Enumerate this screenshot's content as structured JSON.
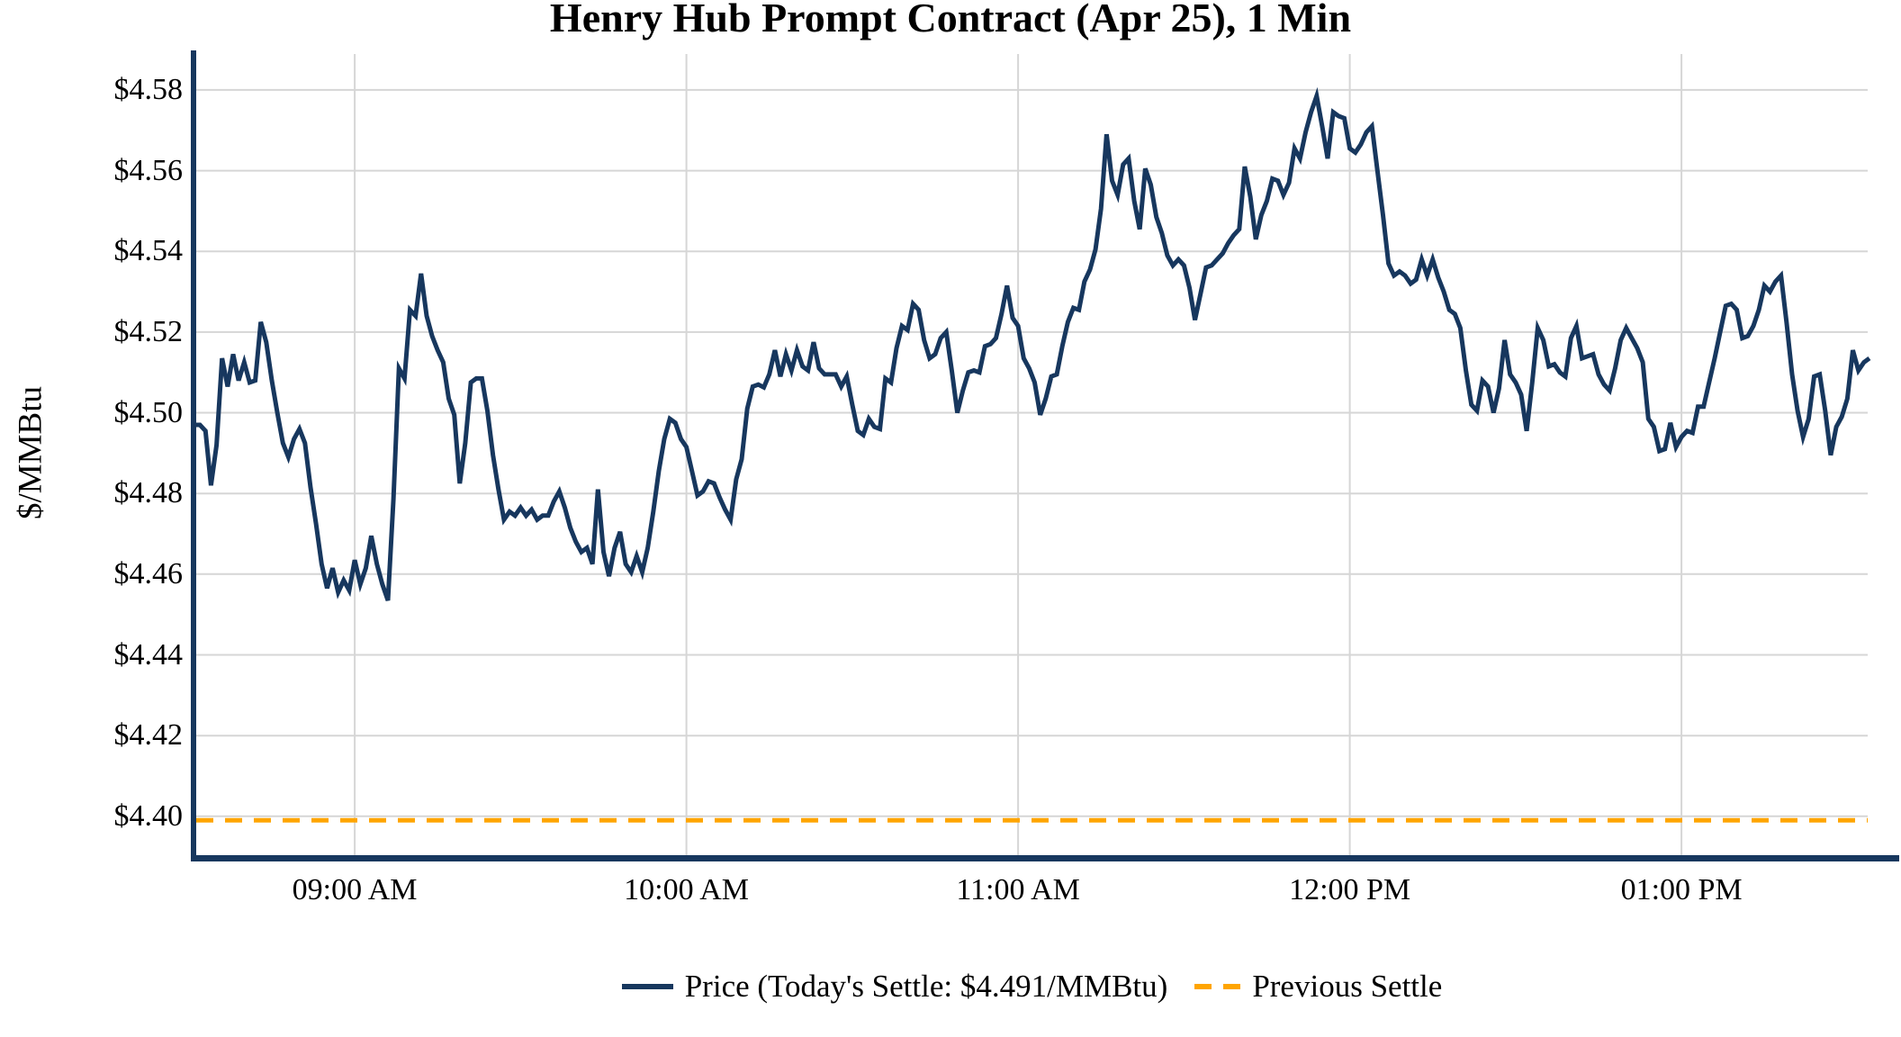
{
  "chart_data": {
    "type": "line",
    "title": "Henry Hub Prompt Contract (Apr 25), 1 Min",
    "ylabel": "$/MMBtu",
    "grid": true,
    "legend_position": "bottom",
    "ylim": [
      4.3897,
      4.5889
    ],
    "y_ticks": [
      {
        "label": "$4.40",
        "value": 4.4
      },
      {
        "label": "$4.42",
        "value": 4.42
      },
      {
        "label": "$4.44",
        "value": 4.44
      },
      {
        "label": "$4.46",
        "value": 4.46
      },
      {
        "label": "$4.48",
        "value": 4.48
      },
      {
        "label": "$4.50",
        "value": 4.5
      },
      {
        "label": "$4.52",
        "value": 4.52
      },
      {
        "label": "$4.54",
        "value": 4.54
      },
      {
        "label": "$4.56",
        "value": 4.56
      },
      {
        "label": "$4.58",
        "value": 4.58
      }
    ],
    "x_ticks": [
      {
        "label": "09:00 AM",
        "index": 29
      },
      {
        "label": "10:00 AM",
        "index": 89
      },
      {
        "label": "11:00 AM",
        "index": 149
      },
      {
        "label": "12:00 PM",
        "index": 209
      },
      {
        "label": "01:00 PM",
        "index": 269
      }
    ],
    "colors": {
      "price_line": "#17375E",
      "previous_settle": "#FFA500",
      "gridline": "#D6D6D6",
      "axis_spine": "#17375E"
    },
    "series": [
      {
        "name": "Price (Today's Settle: $4.491/MMBtu)",
        "type": "line",
        "color": "#17375E",
        "start_time": "08:31 AM",
        "interval_minutes": 1,
        "today_settle": 4.491,
        "values": [
          4.497,
          4.497,
          4.4955,
          4.482,
          4.492,
          4.5135,
          4.5065,
          4.5145,
          4.508,
          4.5125,
          4.5075,
          4.508,
          4.5225,
          4.5175,
          4.508,
          4.5,
          4.4925,
          4.489,
          4.4935,
          4.496,
          4.4925,
          4.4815,
          4.4725,
          4.4625,
          4.4565,
          4.4615,
          4.4555,
          4.4585,
          4.456,
          4.4635,
          4.4575,
          4.4615,
          4.4695,
          4.4625,
          4.4575,
          4.4535,
          4.4785,
          4.511,
          4.5085,
          4.5255,
          4.524,
          4.5345,
          4.524,
          4.519,
          4.5155,
          4.5125,
          4.5035,
          4.4995,
          4.4825,
          4.4925,
          4.5075,
          4.5085,
          4.5085,
          4.5005,
          4.4895,
          4.481,
          4.4735,
          4.4755,
          4.4745,
          4.4765,
          4.4745,
          4.476,
          4.4735,
          4.4745,
          4.4745,
          4.478,
          4.4805,
          4.4765,
          4.4715,
          4.468,
          4.4655,
          4.4665,
          4.4625,
          4.481,
          4.4655,
          4.4595,
          4.4665,
          4.4705,
          4.4625,
          4.4605,
          4.4645,
          4.4605,
          4.4665,
          4.4755,
          4.4855,
          4.4935,
          4.4985,
          4.4975,
          4.4935,
          4.4915,
          4.4855,
          4.4795,
          4.4805,
          4.483,
          4.4825,
          4.479,
          4.476,
          4.4735,
          4.4835,
          4.4885,
          4.501,
          4.5065,
          4.507,
          4.5063,
          4.5095,
          4.5155,
          4.509,
          4.5145,
          4.5105,
          4.5155,
          4.5115,
          4.5105,
          4.5175,
          4.511,
          4.5095,
          4.5095,
          4.5095,
          4.5065,
          4.509,
          4.502,
          4.4955,
          4.4945,
          4.4985,
          4.4965,
          4.496,
          4.5085,
          4.5075,
          4.516,
          4.5215,
          4.5205,
          4.527,
          4.5255,
          4.518,
          4.5135,
          4.5145,
          4.5185,
          4.52,
          4.5105,
          4.5,
          4.5055,
          4.51,
          4.5105,
          4.51,
          4.5165,
          4.517,
          4.5185,
          4.5245,
          4.5315,
          4.5235,
          4.5215,
          4.5135,
          4.511,
          4.5075,
          4.4995,
          4.5035,
          4.509,
          4.5095,
          4.5165,
          4.5225,
          4.526,
          4.5255,
          4.5325,
          4.5355,
          4.5405,
          4.5505,
          4.569,
          4.5575,
          4.554,
          4.5615,
          4.563,
          4.5525,
          4.5455,
          4.5605,
          4.5565,
          4.5485,
          4.5445,
          4.539,
          4.5365,
          4.538,
          4.5365,
          4.531,
          4.523,
          4.5295,
          4.536,
          4.5365,
          4.538,
          4.5395,
          4.542,
          4.544,
          4.5455,
          4.561,
          4.5535,
          4.543,
          4.549,
          4.5525,
          4.558,
          4.5575,
          4.554,
          4.557,
          4.5655,
          4.563,
          4.5695,
          4.5745,
          4.5785,
          4.571,
          4.563,
          4.5745,
          4.5735,
          4.573,
          4.5655,
          4.5645,
          4.5665,
          4.5695,
          4.571,
          4.56,
          4.549,
          4.537,
          4.534,
          4.535,
          4.534,
          4.532,
          4.533,
          4.538,
          4.534,
          4.538,
          4.5335,
          4.53,
          4.5255,
          4.5245,
          4.521,
          4.5105,
          4.502,
          4.5005,
          4.508,
          4.5065,
          4.5,
          4.506,
          4.518,
          4.5095,
          4.5075,
          4.5045,
          4.4955,
          4.5075,
          4.521,
          4.518,
          4.5115,
          4.512,
          4.51,
          4.509,
          4.5185,
          4.5215,
          4.5135,
          4.514,
          4.5145,
          4.5095,
          4.507,
          4.5055,
          4.511,
          4.518,
          4.521,
          4.5185,
          4.516,
          4.5125,
          4.4985,
          4.4965,
          4.4905,
          4.491,
          4.4975,
          4.4915,
          4.494,
          4.4955,
          4.495,
          4.5015,
          4.5015,
          4.5075,
          4.5135,
          4.52,
          4.5265,
          4.527,
          4.5255,
          4.5185,
          4.519,
          4.5215,
          4.5255,
          4.5315,
          4.53,
          4.5325,
          4.534,
          4.5225,
          4.5095,
          4.5005,
          4.494,
          4.4985,
          4.509,
          4.5095,
          4.5005,
          4.4895,
          4.4965,
          4.499,
          4.5035,
          4.5155,
          4.5105,
          4.5125,
          4.5135
        ]
      },
      {
        "name": "Previous Settle",
        "type": "hline",
        "style": "dashed",
        "color": "#FFA500",
        "value": 4.399
      }
    ]
  }
}
